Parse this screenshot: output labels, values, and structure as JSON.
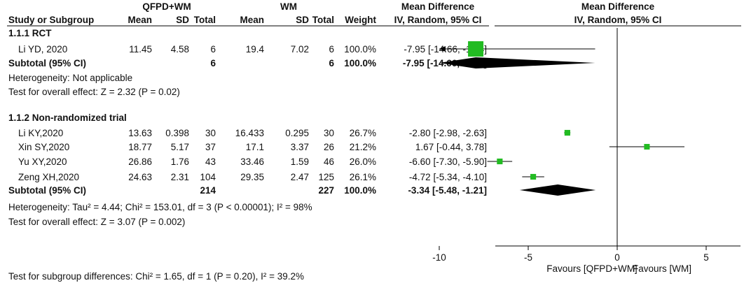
{
  "headers": {
    "group_exp": "QFPD+WM",
    "group_ctrl": "WM",
    "study": "Study or Subgroup",
    "mean": "Mean",
    "sd": "SD",
    "total": "Total",
    "weight": "Weight",
    "md_top": "Mean Difference",
    "md_bottom": "IV, Random, 95% CI",
    "plot_top": "Mean Difference",
    "plot_bottom": "IV, Random, 95% CI"
  },
  "subgroups": [
    {
      "title": "1.1.1 RCT",
      "studies": [
        {
          "name": "Li YD, 2020",
          "m1": "11.45",
          "sd1": "4.58",
          "n1": "6",
          "m2": "19.4",
          "sd2": "7.02",
          "n2": "6",
          "weight": "100.0%",
          "ci_text": "-7.95 [-14.66, -1.24]"
        }
      ],
      "subtotal": {
        "label": "Subtotal (95% CI)",
        "n1": "6",
        "n2": "6",
        "weight": "100.0%",
        "ci_text": "-7.95 [-14.66, -1.24]"
      },
      "heterogeneity": "Heterogeneity: Not applicable",
      "overall": "Test for overall effect: Z = 2.32 (P = 0.02)"
    },
    {
      "title": "1.1.2 Non-randomized trial",
      "studies": [
        {
          "name": "Li KY,2020",
          "m1": "13.63",
          "sd1": "0.398",
          "n1": "30",
          "m2": "16.433",
          "sd2": "0.295",
          "n2": "30",
          "weight": "26.7%",
          "ci_text": "-2.80 [-2.98, -2.63]"
        },
        {
          "name": "Xin SY,2020",
          "m1": "18.77",
          "sd1": "5.17",
          "n1": "37",
          "m2": "17.1",
          "sd2": "3.37",
          "n2": "26",
          "weight": "21.2%",
          "ci_text": "1.67 [-0.44, 3.78]"
        },
        {
          "name": "Yu XY,2020",
          "m1": "26.86",
          "sd1": "1.76",
          "n1": "43",
          "m2": "33.46",
          "sd2": "1.59",
          "n2": "46",
          "weight": "26.0%",
          "ci_text": "-6.60 [-7.30, -5.90]"
        },
        {
          "name": "Zeng XH,2020",
          "m1": "24.63",
          "sd1": "2.31",
          "n1": "104",
          "m2": "29.35",
          "sd2": "2.47",
          "n2": "125",
          "weight": "26.1%",
          "ci_text": "-4.72 [-5.34, -4.10]"
        }
      ],
      "subtotal": {
        "label": "Subtotal (95% CI)",
        "n1": "214",
        "n2": "227",
        "weight": "100.0%",
        "ci_text": "-3.34 [-5.48, -1.21]"
      },
      "heterogeneity": "Heterogeneity: Tau² = 4.44; Chi² = 153.01, df = 3 (P < 0.00001); I² = 98%",
      "overall": "Test for overall effect: Z = 3.07 (P = 0.002)"
    }
  ],
  "footer": "Test for subgroup differences: Chi² = 1.65, df = 1 (P = 0.20), I² = 39.2%",
  "colors": {
    "square": "#22bb22",
    "diamond": "#000000",
    "line": "#000000"
  },
  "chart_data": {
    "type": "forest",
    "axis": {
      "min": -10,
      "max": 10,
      "ticks": [
        -10,
        -5,
        0,
        5,
        10
      ],
      "left_label": "Favours [QFPD+WM]",
      "right_label": "Favours [WM]"
    },
    "studies": [
      {
        "name": "Li YD, 2020",
        "subgroup": "1.1.1 RCT",
        "md": -7.95,
        "lo": -14.66,
        "hi": -1.24,
        "weight": 100.0
      },
      {
        "name": "Li KY,2020",
        "subgroup": "1.1.2 Non-randomized trial",
        "md": -2.8,
        "lo": -2.98,
        "hi": -2.63,
        "weight": 26.7
      },
      {
        "name": "Xin SY,2020",
        "subgroup": "1.1.2 Non-randomized trial",
        "md": 1.67,
        "lo": -0.44,
        "hi": 3.78,
        "weight": 21.2
      },
      {
        "name": "Yu XY,2020",
        "subgroup": "1.1.2 Non-randomized trial",
        "md": -6.6,
        "lo": -7.3,
        "hi": -5.9,
        "weight": 26.0
      },
      {
        "name": "Zeng XH,2020",
        "subgroup": "1.1.2 Non-randomized trial",
        "md": -4.72,
        "lo": -5.34,
        "hi": -4.1,
        "weight": 26.1
      }
    ],
    "subtotals": [
      {
        "subgroup": "1.1.1 RCT",
        "md": -7.95,
        "lo": -14.66,
        "hi": -1.24
      },
      {
        "subgroup": "1.1.2 Non-randomized trial",
        "md": -3.34,
        "lo": -5.48,
        "hi": -1.21
      }
    ]
  }
}
